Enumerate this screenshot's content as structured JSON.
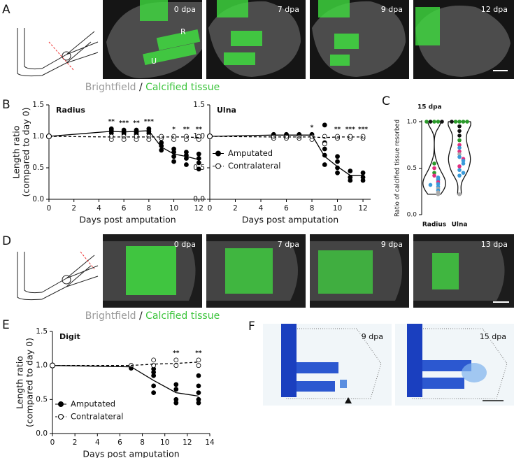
{
  "panel_labels": [
    "A",
    "B",
    "C",
    "D",
    "E",
    "F"
  ],
  "panel_a": {
    "timepoints": [
      "0 dpa",
      "7 dpa",
      "9 dpa",
      "12 dpa"
    ],
    "bone_labels": [
      "R",
      "U"
    ],
    "caption": [
      "Brightfield",
      "/",
      "Calcified tissue"
    ]
  },
  "panel_d": {
    "timepoints": [
      "0 dpa",
      "7 dpa",
      "9 dpa",
      "13 dpa"
    ],
    "caption": [
      "Brightfield",
      "/",
      "Calcified tissue"
    ]
  },
  "panel_f": {
    "timepoints": [
      "9 dpa",
      "15 dpa"
    ]
  },
  "chart_data": [
    {
      "type": "line",
      "title": "Radius",
      "xlabel": "Days post amputation",
      "ylabel": [
        "Length ratio",
        "(compared to day 0)"
      ],
      "x": [
        0,
        5,
        6,
        7,
        8,
        9,
        10,
        11,
        12
      ],
      "xlim": [
        0,
        12.6
      ],
      "xticks": [
        0,
        2,
        4,
        6,
        8,
        10,
        12
      ],
      "ylim": [
        0,
        1.5
      ],
      "yticks": [
        {
          "value": 0,
          "label": "0.0"
        },
        {
          "value": 0.5,
          "label": "0.5"
        },
        {
          "value": 1,
          "label": "1.0"
        },
        {
          "value": 1.5,
          "label": "1.5"
        }
      ],
      "series": [
        {
          "name": "Amputated",
          "color": "#000000",
          "marker": "filled",
          "dashed": false,
          "values": [
            1.0,
            1.08,
            1.07,
            1.08,
            1.09,
            0.83,
            0.72,
            0.68,
            0.63
          ],
          "points_x": [
            5,
            5,
            5,
            5,
            6,
            6,
            6,
            7,
            7,
            7,
            8,
            8,
            8,
            9,
            9,
            9,
            10,
            10,
            10,
            10,
            11,
            11,
            11,
            11,
            12,
            12,
            12,
            12
          ],
          "points_y": [
            1.05,
            1.08,
            1.1,
            1.12,
            1.04,
            1.07,
            1.1,
            1.03,
            1.06,
            1.1,
            1.05,
            1.08,
            1.12,
            0.78,
            0.85,
            0.9,
            0.6,
            0.68,
            0.75,
            0.8,
            0.55,
            0.65,
            0.7,
            0.75,
            0.48,
            0.58,
            0.65,
            0.72
          ]
        },
        {
          "name": "Contralateral",
          "color": "#000000",
          "marker": "open",
          "dashed": true,
          "values": [
            1.0,
            0.99,
            0.99,
            0.99,
            0.99,
            0.99,
            0.99,
            0.99,
            0.98
          ],
          "points_x": [
            5,
            5,
            6,
            6,
            7,
            7,
            8,
            8,
            9,
            9,
            10,
            10,
            11,
            11,
            12,
            12
          ],
          "points_y": [
            0.95,
            1.0,
            0.95,
            1.0,
            0.95,
            1.0,
            0.95,
            1.0,
            0.97,
            1.0,
            0.95,
            1.0,
            0.95,
            1.0,
            0.95,
            1.0
          ]
        }
      ],
      "significance": {
        "x": [
          5,
          6,
          7,
          8,
          10,
          11,
          12
        ],
        "labels": [
          "**",
          "***",
          "**",
          "***",
          "*",
          "**",
          "**"
        ]
      }
    },
    {
      "type": "line",
      "title": "Ulna",
      "xlabel": "Days post amputation",
      "x": [
        0,
        5,
        6,
        7,
        8,
        9,
        10,
        11,
        12
      ],
      "xlim": [
        0,
        12.6
      ],
      "xticks": [
        0,
        2,
        4,
        6,
        8,
        10,
        12
      ],
      "ylim": [
        0,
        1.5
      ],
      "yticks": [
        {
          "value": 0,
          "label": "0.0"
        },
        {
          "value": 0.5,
          "label": "0.5"
        },
        {
          "value": 1,
          "label": "1.0"
        },
        {
          "value": 1.5,
          "label": "1.5"
        }
      ],
      "legend": "center-left",
      "series": [
        {
          "name": "Amputated",
          "color": "#000000",
          "marker": "filled",
          "dashed": false,
          "values": [
            1.0,
            1.02,
            1.02,
            1.02,
            1.02,
            0.68,
            0.52,
            0.38,
            0.38
          ],
          "points_x": [
            5,
            5,
            6,
            6,
            7,
            7,
            8,
            8,
            9,
            9,
            9,
            9,
            9,
            10,
            10,
            10,
            10,
            11,
            11,
            11,
            12,
            12,
            12
          ],
          "points_y": [
            1.0,
            1.03,
            1.0,
            1.03,
            1.0,
            1.03,
            1.0,
            1.03,
            0.55,
            0.7,
            0.8,
            0.9,
            1.18,
            0.42,
            0.5,
            0.6,
            0.68,
            0.3,
            0.35,
            0.45,
            0.3,
            0.35,
            0.42
          ]
        },
        {
          "name": "Contralateral",
          "color": "#000000",
          "marker": "open",
          "dashed": true,
          "values": [
            1.0,
            0.99,
            0.99,
            0.99,
            0.99,
            0.98,
            0.99,
            0.99,
            0.99
          ],
          "points_x": [
            5,
            5,
            6,
            6,
            7,
            7,
            8,
            8,
            9,
            9,
            10,
            10,
            11,
            11,
            12,
            12
          ],
          "points_y": [
            0.97,
            1.0,
            0.97,
            1.0,
            0.97,
            1.0,
            0.95,
            1.0,
            0.88,
            1.0,
            0.97,
            1.0,
            0.97,
            1.0,
            0.97,
            1.0
          ]
        }
      ],
      "significance": {
        "x": [
          8,
          10,
          11,
          12
        ],
        "labels": [
          "*",
          "**",
          "***",
          "***"
        ]
      }
    },
    {
      "type": "violin",
      "title": "15 dpa",
      "ylabel": "Ratio of calcified tissue resorbed",
      "categories": [
        "Radius",
        "Ulna"
      ],
      "ylim": [
        0,
        1
      ],
      "yticks": [
        {
          "value": 0,
          "label": "0.0"
        },
        {
          "value": 0.5,
          "label": "0.5"
        },
        {
          "value": 1,
          "label": "1.0"
        }
      ],
      "values": [
        [
          1,
          1,
          1,
          1,
          1,
          0.55,
          0.5,
          0.45,
          0.42,
          0.4,
          0.38,
          0.37,
          0.35,
          0.33,
          0.32,
          0.3,
          0.28,
          0.26,
          0.24,
          0.22
        ],
        [
          1,
          1,
          1,
          1,
          1,
          0.95,
          0.9,
          0.85,
          0.8,
          0.75,
          0.72,
          0.68,
          0.65,
          0.62,
          0.6,
          0.58,
          0.55,
          0.52,
          0.48,
          0.45,
          0.42,
          0.22
        ]
      ],
      "point_colors": [
        [
          "#2a9a2a",
          "#2a9a2a",
          "#111111",
          "#111111",
          "#2a9a2a",
          "#2a9a2a",
          "#e0307f",
          "#2a9a2a",
          "#e0307f",
          "#3a9ad9",
          "#3a9ad9",
          "#3a9ad9",
          "#e0307f",
          "#3a9ad9",
          "#3a9ad9",
          "#3a9ad9",
          "#aaaaaa",
          "#3a9ad9",
          "#aaaaaa",
          "#aaaaaa"
        ],
        [
          "#2a9a2a",
          "#2a9a2a",
          "#2a9a2a",
          "#2a9a2a",
          "#111111",
          "#111111",
          "#111111",
          "#111111",
          "#2a9a2a",
          "#e0307f",
          "#3a9ad9",
          "#e0307f",
          "#aaaaaa",
          "#3a9ad9",
          "#e0307f",
          "#3a9ad9",
          "#3a9ad9",
          "#e0307f",
          "#3a9ad9",
          "#3a9ad9",
          "#3a9ad9",
          "#aaaaaa"
        ]
      ]
    },
    {
      "type": "line",
      "title": "Digit",
      "xlabel": "Days post amputation",
      "ylabel": [
        "Length ratio",
        "(compared to day 0)"
      ],
      "x": [
        0,
        7,
        9,
        11,
        13
      ],
      "xlim": [
        0,
        14
      ],
      "xticks": [
        0,
        2,
        4,
        6,
        8,
        10,
        12,
        14
      ],
      "ylim": [
        0,
        1.5
      ],
      "yticks": [
        {
          "value": 0,
          "label": "0.0"
        },
        {
          "value": 0.5,
          "label": "0.5"
        },
        {
          "value": 1,
          "label": "1.0"
        },
        {
          "value": 1.5,
          "label": "1.5"
        }
      ],
      "legend": "lower-left",
      "series": [
        {
          "name": "Amputated",
          "color": "#000000",
          "marker": "filled",
          "dashed": false,
          "values": [
            1.0,
            0.98,
            0.78,
            0.6,
            0.55
          ],
          "points_x": [
            7,
            7,
            9,
            9,
            9,
            9,
            9,
            11,
            11,
            11,
            11,
            13,
            13,
            13,
            13,
            13
          ],
          "points_y": [
            0.96,
            1.0,
            0.6,
            0.7,
            0.85,
            0.9,
            0.95,
            0.45,
            0.5,
            0.65,
            0.72,
            0.45,
            0.5,
            0.6,
            0.7,
            0.85
          ]
        },
        {
          "name": "Contralateral",
          "color": "#000000",
          "marker": "open",
          "dashed": true,
          "values": [
            1.0,
            1.0,
            1.02,
            1.03,
            1.05
          ],
          "points_x": [
            7,
            9,
            9,
            11,
            11,
            13,
            13
          ],
          "points_y": [
            1.0,
            1.0,
            1.08,
            1.0,
            1.08,
            1.0,
            1.08
          ]
        }
      ],
      "significance": {
        "x": [
          11,
          13
        ],
        "labels": [
          "**",
          "**"
        ]
      }
    }
  ]
}
